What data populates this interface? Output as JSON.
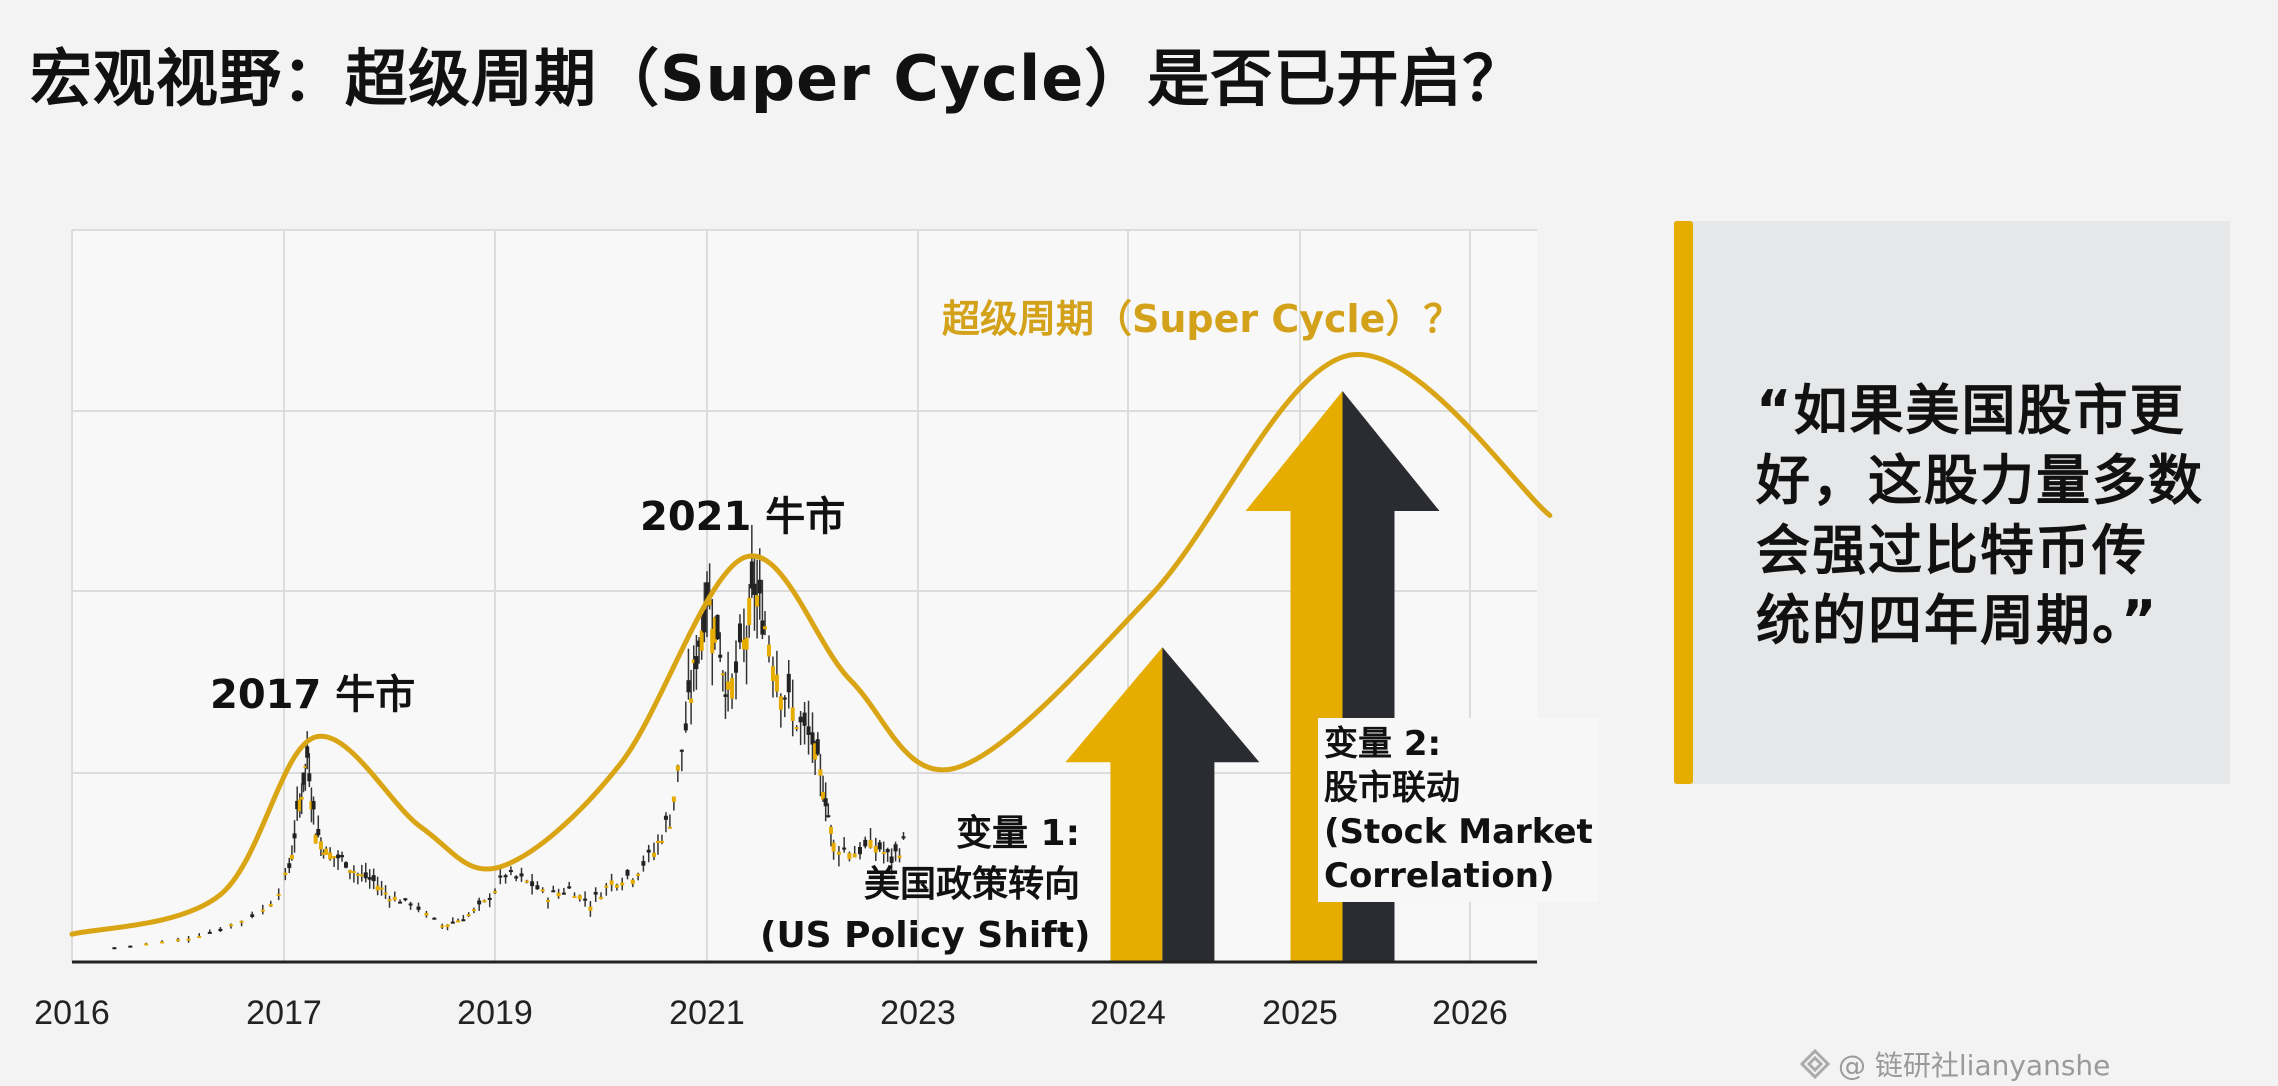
{
  "title": "宏观视野：超级周期（Super Cycle）是否已开启？",
  "chart_data": {
    "type": "line",
    "x_tick_labels": [
      "2016",
      "2017",
      "2019",
      "2021",
      "2023",
      "2024",
      "2025",
      "2026"
    ],
    "grid": true,
    "colors": {
      "curve": "#d9a514",
      "arrow_gold": "#e6ac00",
      "arrow_dark": "#2a2c31",
      "candle_up": "#e6ac00",
      "candle_down": "#222222"
    },
    "cycle_curve": [
      [
        2016.0,
        3.8
      ],
      [
        2016.7,
        9.2
      ],
      [
        2017.29,
        30.7
      ],
      [
        2018.3,
        18.4
      ],
      [
        2019.05,
        13
      ],
      [
        2020.18,
        27
      ],
      [
        2021.36,
        55.3
      ],
      [
        2022.36,
        38.5
      ],
      [
        2023.18,
        26.5
      ],
      [
        2024.13,
        50
      ],
      [
        2025.29,
        82.9
      ],
      [
        2026.47,
        61
      ]
    ],
    "price_candles": [
      [
        2016.2,
        2
      ],
      [
        2016.5,
        3
      ],
      [
        2016.7,
        4.5
      ],
      [
        2016.9,
        7
      ],
      [
        2017.05,
        13
      ],
      [
        2017.15,
        22
      ],
      [
        2017.22,
        28
      ],
      [
        2017.3,
        18
      ],
      [
        2017.4,
        15
      ],
      [
        2017.55,
        14
      ],
      [
        2017.7,
        12
      ],
      [
        2017.85,
        11
      ],
      [
        2018.0,
        9
      ],
      [
        2018.2,
        8
      ],
      [
        2018.5,
        5
      ],
      [
        2018.7,
        6
      ],
      [
        2018.9,
        8
      ],
      [
        2019.1,
        12
      ],
      [
        2019.3,
        11
      ],
      [
        2019.5,
        9
      ],
      [
        2019.7,
        10
      ],
      [
        2019.9,
        8
      ],
      [
        2020.1,
        11
      ],
      [
        2020.3,
        12
      ],
      [
        2020.5,
        15
      ],
      [
        2020.65,
        20
      ],
      [
        2020.8,
        32
      ],
      [
        2020.9,
        42
      ],
      [
        2021.0,
        50
      ],
      [
        2021.1,
        45
      ],
      [
        2021.2,
        36
      ],
      [
        2021.35,
        43
      ],
      [
        2021.45,
        51
      ],
      [
        2021.55,
        46
      ],
      [
        2021.7,
        38
      ],
      [
        2021.85,
        33
      ],
      [
        2022.0,
        30
      ],
      [
        2022.1,
        24
      ],
      [
        2022.2,
        16
      ],
      [
        2022.4,
        15
      ],
      [
        2022.6,
        16
      ],
      [
        2022.75,
        14
      ],
      [
        2022.9,
        17
      ]
    ],
    "arrows": [
      {
        "name": "变量 1",
        "year": 2024.2,
        "height": 43
      },
      {
        "name": "变量 2",
        "year": 2025.25,
        "height": 78
      }
    ],
    "annotations": {
      "super_cycle": "超级周期（Super Cycle）？",
      "bull_2021": "2021 牛市",
      "bull_2017": "2017 牛市",
      "var1": [
        "变量 1:",
        "美国政策转向",
        "(US Policy Shift)"
      ],
      "var2": [
        "变量 2:",
        "股市联动",
        "(Stock Market",
        "Correlation)"
      ]
    }
  },
  "quote": [
    "“如果美国股市更",
    "好，这股力量多数",
    "会强过比特币传",
    "统的四年周期。”"
  ],
  "watermark": "@ 链研社lianyanshe"
}
